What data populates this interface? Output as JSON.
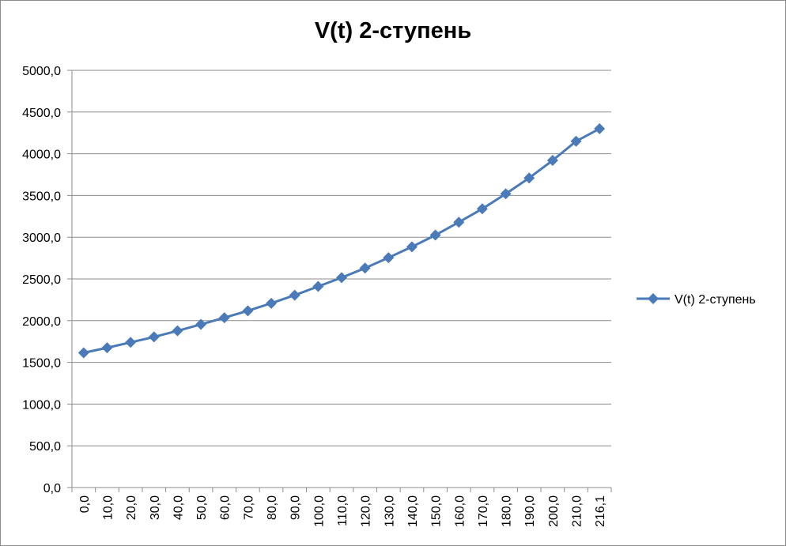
{
  "chart_data": {
    "type": "line",
    "title": "V(t) 2-ступень",
    "xlabel": "",
    "ylabel": "",
    "categories": [
      "0,0",
      "10,0",
      "20,0",
      "30,0",
      "40,0",
      "50,0",
      "60,0",
      "70,0",
      "80,0",
      "90,0",
      "100,0",
      "110,0",
      "120,0",
      "130,0",
      "140,0",
      "150,0",
      "160,0",
      "170,0",
      "180,0",
      "190,0",
      "200,0",
      "210,0",
      "216,1"
    ],
    "series": [
      {
        "name": "V(t) 2-ступень",
        "color": "#4a7ab8",
        "marker": "diamond",
        "values": [
          1615,
          1675,
          1740,
          1805,
          1878,
          1955,
          2035,
          2118,
          2208,
          2305,
          2410,
          2515,
          2630,
          2755,
          2885,
          3025,
          3180,
          3340,
          3520,
          3710,
          3920,
          4150,
          4300
        ]
      }
    ],
    "y_ticks": [
      "0,0",
      "500,0",
      "1000,0",
      "1500,0",
      "2000,0",
      "2500,0",
      "3000,0",
      "3500,0",
      "4000,0",
      "4500,0",
      "5000,0"
    ],
    "ylim": [
      0,
      5000
    ],
    "grid": "horizontal",
    "legend": "right"
  }
}
